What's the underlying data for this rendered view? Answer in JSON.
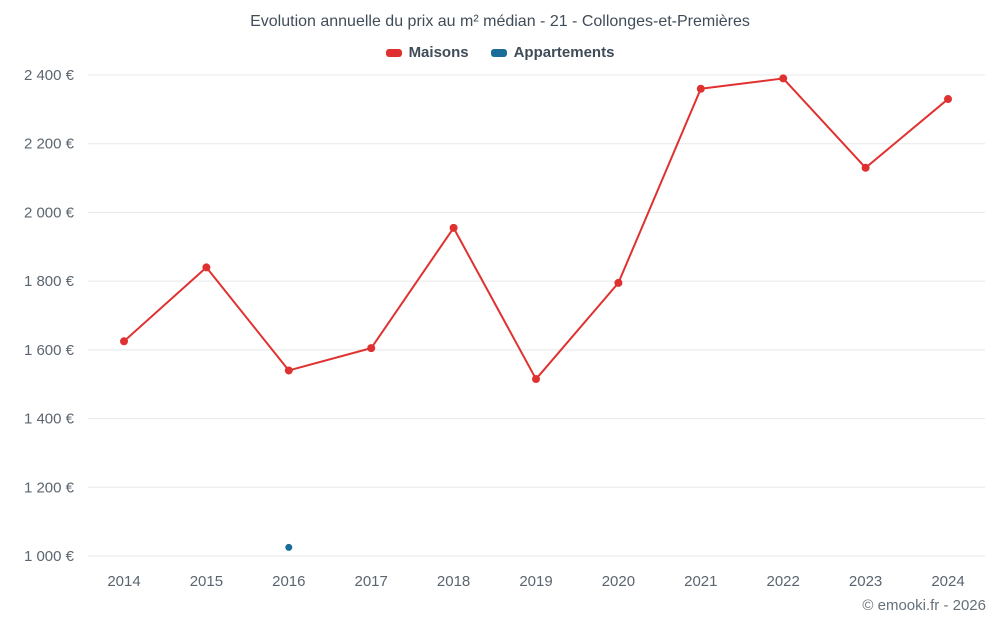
{
  "chart": {
    "title": "Evolution annuelle du prix au m² médian - 21 - Collonges-et-Premières",
    "copyright": "© emooki.fr - 2026"
  },
  "chart_data": {
    "type": "line",
    "title": "Evolution annuelle du prix au m² médian - 21 - Collonges-et-Premières",
    "categories": [
      "2014",
      "2015",
      "2016",
      "2017",
      "2018",
      "2019",
      "2020",
      "2021",
      "2022",
      "2023",
      "2024"
    ],
    "series": [
      {
        "name": "Maisons",
        "type": "line",
        "color": "#e03131",
        "marker_radius": 4,
        "values": [
          1625,
          1840,
          1540,
          1605,
          1955,
          1515,
          1795,
          2360,
          2390,
          2130,
          2330
        ]
      },
      {
        "name": "Appartements",
        "type": "scatter",
        "color": "#1a6d99",
        "marker_radius": 3.5,
        "values": [
          null,
          null,
          1025,
          null,
          null,
          null,
          null,
          null,
          null,
          null,
          null
        ]
      }
    ],
    "ylim": [
      1000,
      2400
    ],
    "ytick_step": 200,
    "ytick_suffix": " €",
    "grid": "horizontal",
    "legend_position": "top",
    "colors": {
      "grid": "#e8e8e8",
      "axis_text": "#5b6570",
      "title_text": "#404d59"
    }
  }
}
